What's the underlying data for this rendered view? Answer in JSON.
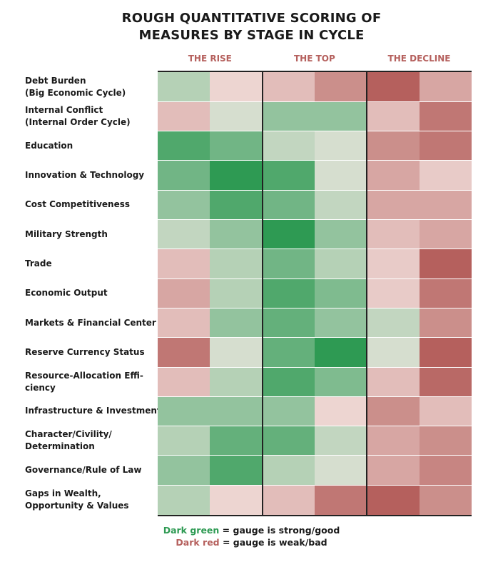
{
  "title": {
    "line1": "ROUGH QUANTITATIVE SCORING OF",
    "line2": "MEASURES BY STAGE IN CYCLE"
  },
  "legend": {
    "green_term": "Dark green",
    "green_text": " = gauge is strong/good",
    "red_term": "Dark red",
    "red_text": " = gauge is weak/bad"
  },
  "chart_data": {
    "type": "heatmap",
    "title": "ROUGH QUANTITATIVE SCORING OF MEASURES BY STAGE IN CYCLE",
    "phases": [
      "THE RISE",
      "THE TOP",
      "THE DECLINE"
    ],
    "columns_per_phase": 2,
    "color_scale": {
      "note": "values range from -3 (dark red, gauge is weak/bad) to +3 (dark green, gauge is strong/good)",
      "min": -3,
      "max": 3,
      "neg_color": "#b5605d",
      "pos_color": "#2e9a53",
      "neutral_color": "#f8ece8"
    },
    "rows": [
      {
        "label_lines": [
          "Debt Burden",
          "(Big Economic Cycle)"
        ],
        "values": [
          1,
          -0.5,
          -1,
          -2,
          -3,
          -1.5
        ]
      },
      {
        "label_lines": [
          "Internal Conflict",
          "(Internal Order Cycle)"
        ],
        "values": [
          -1,
          0.5,
          1.5,
          1.5,
          -1,
          -2.5
        ]
      },
      {
        "label_lines": [
          "Education"
        ],
        "values": [
          2.5,
          2,
          0.8,
          0.5,
          -2,
          -2.5
        ]
      },
      {
        "label_lines": [
          "Innovation & Technology"
        ],
        "values": [
          2,
          3,
          2.5,
          0.5,
          -1.5,
          -0.7
        ]
      },
      {
        "label_lines": [
          "Cost Competitiveness"
        ],
        "values": [
          1.5,
          2.5,
          2,
          0.8,
          -1.5,
          -1.5
        ]
      },
      {
        "label_lines": [
          "Military Strength"
        ],
        "values": [
          0.8,
          1.5,
          3,
          1.5,
          -1,
          -1.5
        ]
      },
      {
        "label_lines": [
          "Trade"
        ],
        "values": [
          -1,
          1,
          2,
          1,
          -0.7,
          -3
        ]
      },
      {
        "label_lines": [
          "Economic Output"
        ],
        "values": [
          -1.5,
          1,
          2.5,
          1.8,
          -0.7,
          -2.5
        ]
      },
      {
        "label_lines": [
          "Markets & Financial Center"
        ],
        "values": [
          -1,
          1.5,
          2.2,
          1.5,
          0.8,
          -2
        ]
      },
      {
        "label_lines": [
          "Reserve Currency Status"
        ],
        "values": [
          -2.5,
          0.5,
          2.2,
          3,
          0.5,
          -3
        ]
      },
      {
        "label_lines": [
          "Resource-Allocation Effi-",
          "ciency"
        ],
        "values": [
          -1,
          1,
          2.5,
          1.8,
          -1,
          -2.8
        ]
      },
      {
        "label_lines": [
          "Infrastructure & Investment"
        ],
        "values": [
          1.5,
          1.5,
          1.5,
          -0.5,
          -2,
          -1
        ]
      },
      {
        "label_lines": [
          "Character/Civility/",
          "Determination"
        ],
        "values": [
          1,
          2.2,
          2.2,
          0.8,
          -1.5,
          -2
        ]
      },
      {
        "label_lines": [
          "Governance/Rule of Law"
        ],
        "values": [
          1.5,
          2.5,
          1,
          0.5,
          -1.5,
          -2.2
        ]
      },
      {
        "label_lines": [
          "Gaps in Wealth,",
          "Opportunity & Values"
        ],
        "values": [
          1,
          -0.5,
          -1,
          -2.5,
          -3,
          -2
        ]
      }
    ]
  }
}
